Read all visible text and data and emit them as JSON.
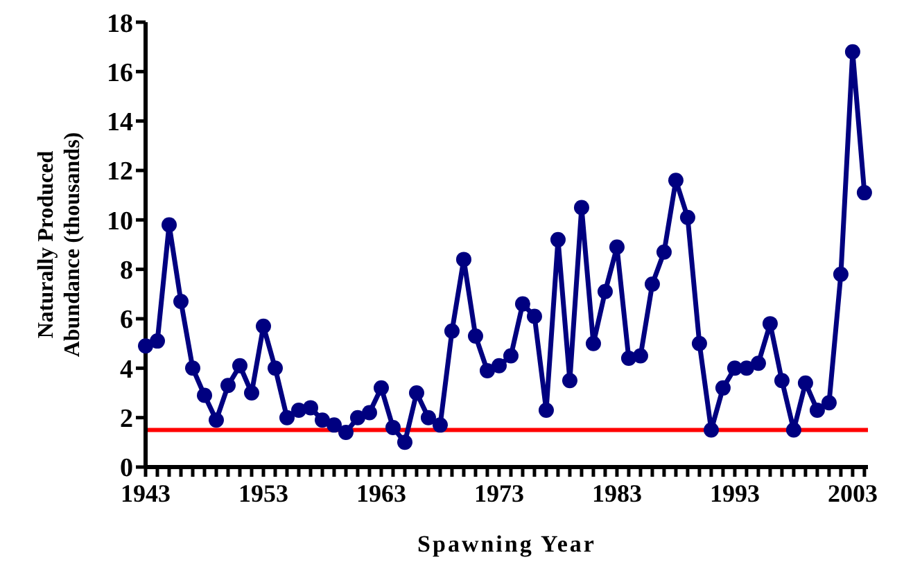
{
  "chart_data": {
    "type": "line",
    "xlabel": "Spawning Year",
    "ylabel": "Naturally Produced Abundance (thousands)",
    "x": [
      1943,
      1944,
      1945,
      1946,
      1947,
      1948,
      1949,
      1950,
      1951,
      1952,
      1953,
      1954,
      1955,
      1956,
      1957,
      1958,
      1959,
      1960,
      1961,
      1962,
      1963,
      1964,
      1965,
      1966,
      1967,
      1968,
      1969,
      1970,
      1971,
      1972,
      1973,
      1974,
      1975,
      1976,
      1977,
      1978,
      1979,
      1980,
      1981,
      1982,
      1983,
      1984,
      1985,
      1986,
      1987,
      1988,
      1989,
      1990,
      1991,
      1992,
      1993,
      1994,
      1995,
      1996,
      1997,
      1998,
      1999,
      2000,
      2001,
      2002,
      2003,
      2004
    ],
    "series": [
      {
        "color": "#000080",
        "values": [
          4.9,
          5.1,
          9.8,
          6.7,
          4.0,
          2.9,
          1.9,
          3.3,
          4.1,
          3.0,
          5.7,
          4.0,
          2.0,
          2.3,
          2.4,
          1.9,
          1.7,
          1.4,
          2.0,
          2.2,
          3.2,
          1.6,
          1.0,
          3.0,
          2.0,
          1.7,
          5.5,
          8.4,
          5.3,
          3.9,
          4.1,
          4.5,
          6.6,
          6.1,
          2.3,
          9.2,
          3.5,
          10.5,
          5.0,
          7.1,
          8.9,
          4.4,
          4.5,
          7.4,
          8.7,
          11.6,
          10.1,
          5.0,
          1.5,
          3.2,
          4.0,
          4.0,
          4.2,
          5.8,
          3.5,
          1.5,
          3.4,
          2.3,
          2.6,
          7.8,
          16.8,
          11.1
        ]
      }
    ],
    "xlim": [
      1943,
      2004.3
    ],
    "xticks": [
      1943,
      {
        "value": 1944,
        "label": null
      },
      {
        "value": 1945,
        "label": null
      },
      {
        "value": 1946,
        "label": null
      },
      {
        "value": 1947,
        "label": null
      },
      {
        "value": 1948,
        "label": null
      },
      {
        "value": 1949,
        "label": null
      },
      {
        "value": 1950,
        "label": null
      },
      {
        "value": 1951,
        "label": null
      },
      {
        "value": 1952,
        "label": null
      },
      1953,
      {
        "value": 1954,
        "label": null
      },
      {
        "value": 1955,
        "label": null
      },
      {
        "value": 1956,
        "label": null
      },
      {
        "value": 1957,
        "label": null
      },
      {
        "value": 1958,
        "label": null
      },
      {
        "value": 1959,
        "label": null
      },
      {
        "value": 1960,
        "label": null
      },
      {
        "value": 1961,
        "label": null
      },
      {
        "value": 1962,
        "label": null
      },
      1963,
      {
        "value": 1964,
        "label": null
      },
      {
        "value": 1965,
        "label": null
      },
      {
        "value": 1966,
        "label": null
      },
      {
        "value": 1967,
        "label": null
      },
      {
        "value": 1968,
        "label": null
      },
      {
        "value": 1969,
        "label": null
      },
      {
        "value": 1970,
        "label": null
      },
      {
        "value": 1971,
        "label": null
      },
      {
        "value": 1972,
        "label": null
      },
      1973,
      {
        "value": 1974,
        "label": null
      },
      {
        "value": 1975,
        "label": null
      },
      {
        "value": 1976,
        "label": null
      },
      {
        "value": 1977,
        "label": null
      },
      {
        "value": 1978,
        "label": null
      },
      {
        "value": 1979,
        "label": null
      },
      {
        "value": 1980,
        "label": null
      },
      {
        "value": 1981,
        "label": null
      },
      {
        "value": 1982,
        "label": null
      },
      1983,
      {
        "value": 1984,
        "label": null
      },
      {
        "value": 1985,
        "label": null
      },
      {
        "value": 1986,
        "label": null
      },
      {
        "value": 1987,
        "label": null
      },
      {
        "value": 1988,
        "label": null
      },
      {
        "value": 1989,
        "label": null
      },
      {
        "value": 1990,
        "label": null
      },
      {
        "value": 1991,
        "label": null
      },
      {
        "value": 1992,
        "label": null
      },
      1993,
      {
        "value": 1994,
        "label": null
      },
      {
        "value": 1995,
        "label": null
      },
      {
        "value": 1996,
        "label": null
      },
      {
        "value": 1997,
        "label": null
      },
      {
        "value": 1998,
        "label": null
      },
      {
        "value": 1999,
        "label": null
      },
      {
        "value": 2000,
        "label": null
      },
      {
        "value": 2001,
        "label": null
      },
      {
        "value": 2002,
        "label": null
      },
      2003,
      {
        "value": 2004,
        "label": null
      }
    ],
    "ylim": [
      0,
      18
    ],
    "yticks": [
      0,
      2,
      4,
      6,
      8,
      10,
      12,
      14,
      16,
      18
    ],
    "ref_lines": [
      {
        "axis": "y",
        "value": 1.5,
        "color": "#ff0000"
      }
    ],
    "grid": false,
    "legend": false,
    "marker": "circle",
    "line_style": "solid"
  }
}
